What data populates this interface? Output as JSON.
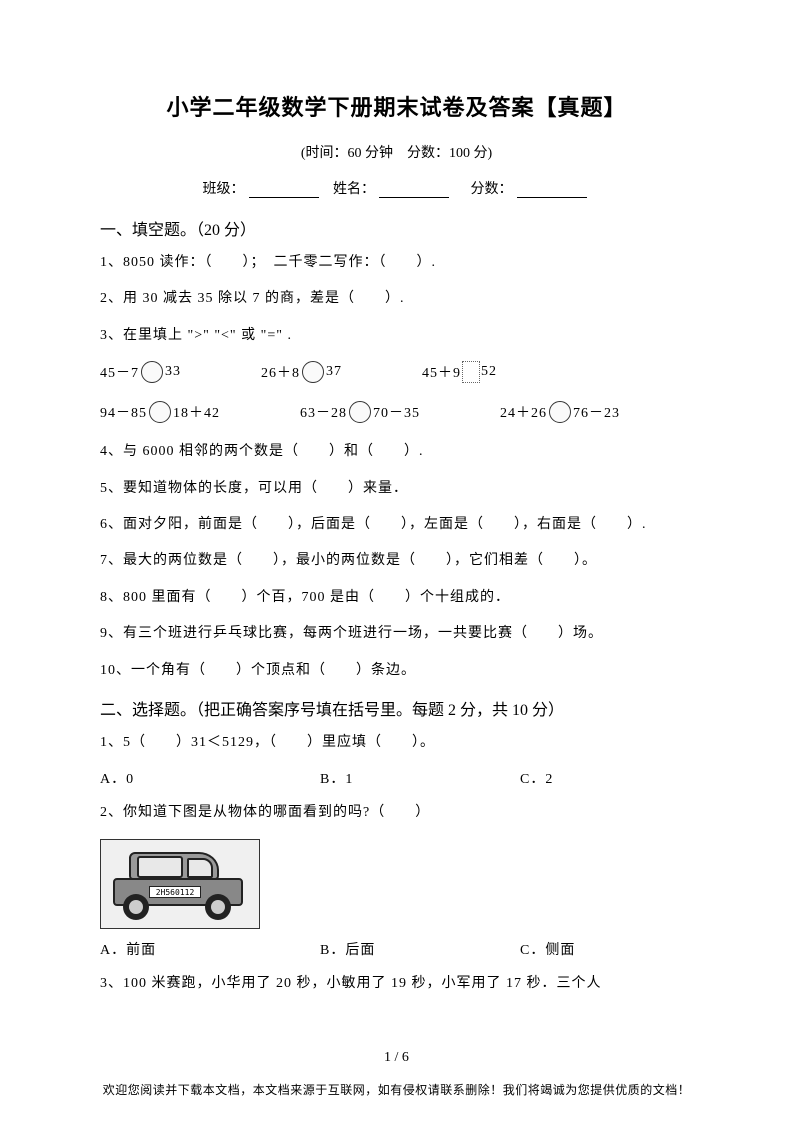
{
  "title": "小学二年级数学下册期末试卷及答案【真题】",
  "subtitle": "(时间：60 分钟　分数：100 分)",
  "form": {
    "class_label": "班级：",
    "name_label": "姓名：",
    "score_label": "分数："
  },
  "section1": {
    "header": "一、填空题。（20 分）",
    "q1": "1、8050 读作：（　　）；　二千零二写作：（　　）.",
    "q2": "2、用 30 减去 35 除以 7 的商，差是（　　）.",
    "q3": "3、在里填上 \">\" \"<\" 或 \"=\" .",
    "comp_row1": {
      "a_left": "45－7",
      "a_right": "33",
      "b_left": "26＋8",
      "b_right": "37",
      "c_left": "45＋9",
      "c_right": "52",
      "c_rect": true
    },
    "comp_row2": {
      "a_left": "94－85",
      "a_right": "18＋42",
      "b_left": "63－28",
      "b_right": "70－35",
      "c_left": "24＋26",
      "c_right": "76－23"
    },
    "q4": "4、与 6000 相邻的两个数是（　　）和（　　）.",
    "q5": "5、要知道物体的长度，可以用（　　）来量．",
    "q6": "6、面对夕阳，前面是（　　），后面是（　　），左面是（　　），右面是（　　）.",
    "q7": "7、最大的两位数是（　　），最小的两位数是（　　），它们相差（　　）。",
    "q8": "8、800 里面有（　　）个百，700 是由（　　）个十组成的．",
    "q9": "9、有三个班进行乒乓球比赛，每两个班进行一场，一共要比赛（　　）场。",
    "q10": "10、一个角有（　　）个顶点和（　　）条边。"
  },
  "section2": {
    "header": "二、选择题。（把正确答案序号填在括号里。每题 2 分，共 10 分）",
    "q1": "1、5（　　）31＜5129，（　　）里应填（　　）。",
    "q1_options": {
      "a": "A．0",
      "b": "B．1",
      "c": "C．2"
    },
    "q2": "2、你知道下图是从物体的哪面看到的吗?（　　）",
    "car_plate": "2H560112",
    "q2_options": {
      "a": "A．前面",
      "b": "B．后面",
      "c": "C．侧面"
    },
    "q3": "3、100 米赛跑，小华用了 20 秒，小敏用了 19 秒，小军用了 17 秒．三个人"
  },
  "page_num": "1 / 6",
  "footer": "欢迎您阅读并下载本文档，本文档来源于互联网，如有侵权请联系删除！我们将竭诚为您提供优质的文档！"
}
